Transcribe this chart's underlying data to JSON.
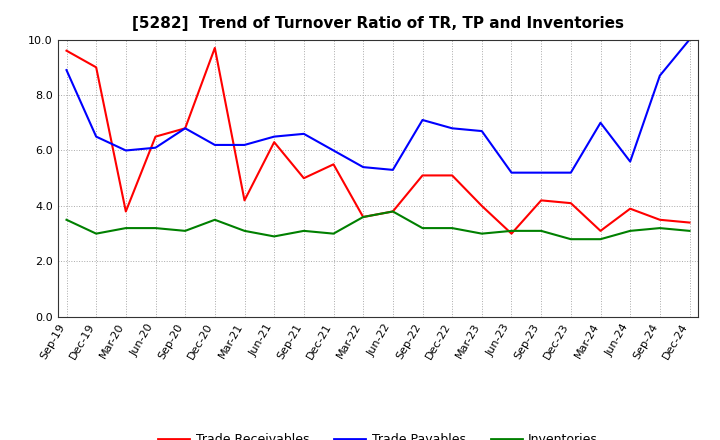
{
  "title": "[5282]  Trend of Turnover Ratio of TR, TP and Inventories",
  "x_labels": [
    "Sep-19",
    "Dec-19",
    "Mar-20",
    "Jun-20",
    "Sep-20",
    "Dec-20",
    "Mar-21",
    "Jun-21",
    "Sep-21",
    "Dec-21",
    "Mar-22",
    "Jun-22",
    "Sep-22",
    "Dec-22",
    "Mar-23",
    "Jun-23",
    "Sep-23",
    "Dec-23",
    "Mar-24",
    "Jun-24",
    "Sep-24",
    "Dec-24"
  ],
  "trade_receivables": [
    9.6,
    9.0,
    3.8,
    6.5,
    6.8,
    9.7,
    4.2,
    6.3,
    5.0,
    5.5,
    3.6,
    3.8,
    5.1,
    5.1,
    4.0,
    3.0,
    4.2,
    4.1,
    3.1,
    3.9,
    3.5,
    3.4
  ],
  "trade_payables": [
    8.9,
    6.5,
    6.0,
    6.1,
    6.8,
    6.2,
    6.2,
    6.5,
    6.6,
    6.0,
    5.4,
    5.3,
    7.1,
    6.8,
    6.7,
    5.2,
    5.2,
    5.2,
    7.0,
    5.6,
    8.7,
    10.0
  ],
  "inventories": [
    3.5,
    3.0,
    3.2,
    3.2,
    3.1,
    3.5,
    3.1,
    2.9,
    3.1,
    3.0,
    3.6,
    3.8,
    3.2,
    3.2,
    3.0,
    3.1,
    3.1,
    2.8,
    2.8,
    3.1,
    3.2,
    3.1
  ],
  "line_colors": {
    "trade_receivables": "#ff0000",
    "trade_payables": "#0000ff",
    "inventories": "#008000"
  },
  "legend_labels": [
    "Trade Receivables",
    "Trade Payables",
    "Inventories"
  ],
  "ylim": [
    0.0,
    10.0
  ],
  "yticks": [
    0.0,
    2.0,
    4.0,
    6.0,
    8.0,
    10.0
  ],
  "background_color": "#ffffff",
  "grid_color": "#aaaaaa",
  "title_fontsize": 11,
  "tick_fontsize": 8,
  "legend_fontsize": 9,
  "line_width": 1.5
}
